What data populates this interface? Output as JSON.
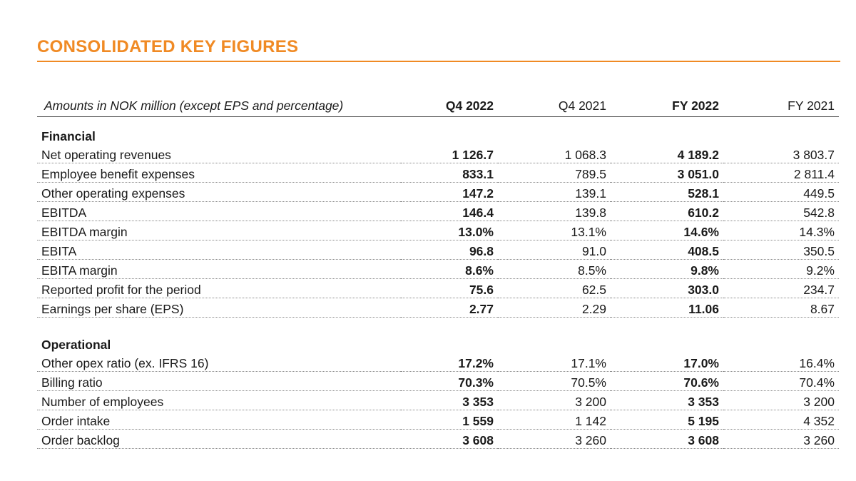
{
  "title": "CONSOLIDATED KEY FIGURES",
  "table": {
    "header": {
      "label": "Amounts in NOK million (except EPS and percentage)",
      "q4_2022": "Q4 2022",
      "q4_2021": "Q4 2021",
      "fy_2022": "FY 2022",
      "fy_2021": "FY 2021"
    },
    "sections": [
      {
        "name": "Financial",
        "rows": [
          {
            "label": "Net operating revenues",
            "q4_2022": "1 126.7",
            "q4_2021": "1 068.3",
            "fy_2022": "4 189.2",
            "fy_2021": "3 803.7"
          },
          {
            "label": "Employee benefit expenses",
            "q4_2022": "833.1",
            "q4_2021": "789.5",
            "fy_2022": "3 051.0",
            "fy_2021": "2 811.4"
          },
          {
            "label": "Other operating expenses",
            "q4_2022": "147.2",
            "q4_2021": "139.1",
            "fy_2022": "528.1",
            "fy_2021": "449.5"
          },
          {
            "label": "EBITDA",
            "q4_2022": "146.4",
            "q4_2021": "139.8",
            "fy_2022": "610.2",
            "fy_2021": "542.8"
          },
          {
            "label": "EBITDA margin",
            "q4_2022": "13.0%",
            "q4_2021": "13.1%",
            "fy_2022": "14.6%",
            "fy_2021": "14.3%"
          },
          {
            "label": "EBITA",
            "q4_2022": "96.8",
            "q4_2021": "91.0",
            "fy_2022": "408.5",
            "fy_2021": "350.5"
          },
          {
            "label": "EBITA margin",
            "q4_2022": "8.6%",
            "q4_2021": "8.5%",
            "fy_2022": "9.8%",
            "fy_2021": "9.2%"
          },
          {
            "label": "Reported profit for the period",
            "q4_2022": "75.6",
            "q4_2021": "62.5",
            "fy_2022": "303.0",
            "fy_2021": "234.7"
          },
          {
            "label": "Earnings per share (EPS)",
            "q4_2022": "2.77",
            "q4_2021": "2.29",
            "fy_2022": "11.06",
            "fy_2021": "8.67"
          }
        ]
      },
      {
        "name": "Operational",
        "rows": [
          {
            "label": "Other opex ratio (ex. IFRS 16)",
            "q4_2022": "17.2%",
            "q4_2021": "17.1%",
            "fy_2022": "17.0%",
            "fy_2021": "16.4%"
          },
          {
            "label": "Billing ratio",
            "q4_2022": "70.3%",
            "q4_2021": "70.5%",
            "fy_2022": "70.6%",
            "fy_2021": "70.4%"
          },
          {
            "label": "Number of employees",
            "q4_2022": "3 353",
            "q4_2021": "3 200",
            "fy_2022": "3 353",
            "fy_2021": "3 200"
          },
          {
            "label": "Order intake",
            "q4_2022": "1 559",
            "q4_2021": "1 142",
            "fy_2022": "5 195",
            "fy_2021": "4 352"
          },
          {
            "label": "Order backlog",
            "q4_2022": "3 608",
            "q4_2021": "3 260",
            "fy_2022": "3 608",
            "fy_2021": "3 260"
          }
        ]
      }
    ]
  },
  "colors": {
    "accent": "#f08a24",
    "text": "#1a1a1a",
    "rule": "#555555"
  }
}
